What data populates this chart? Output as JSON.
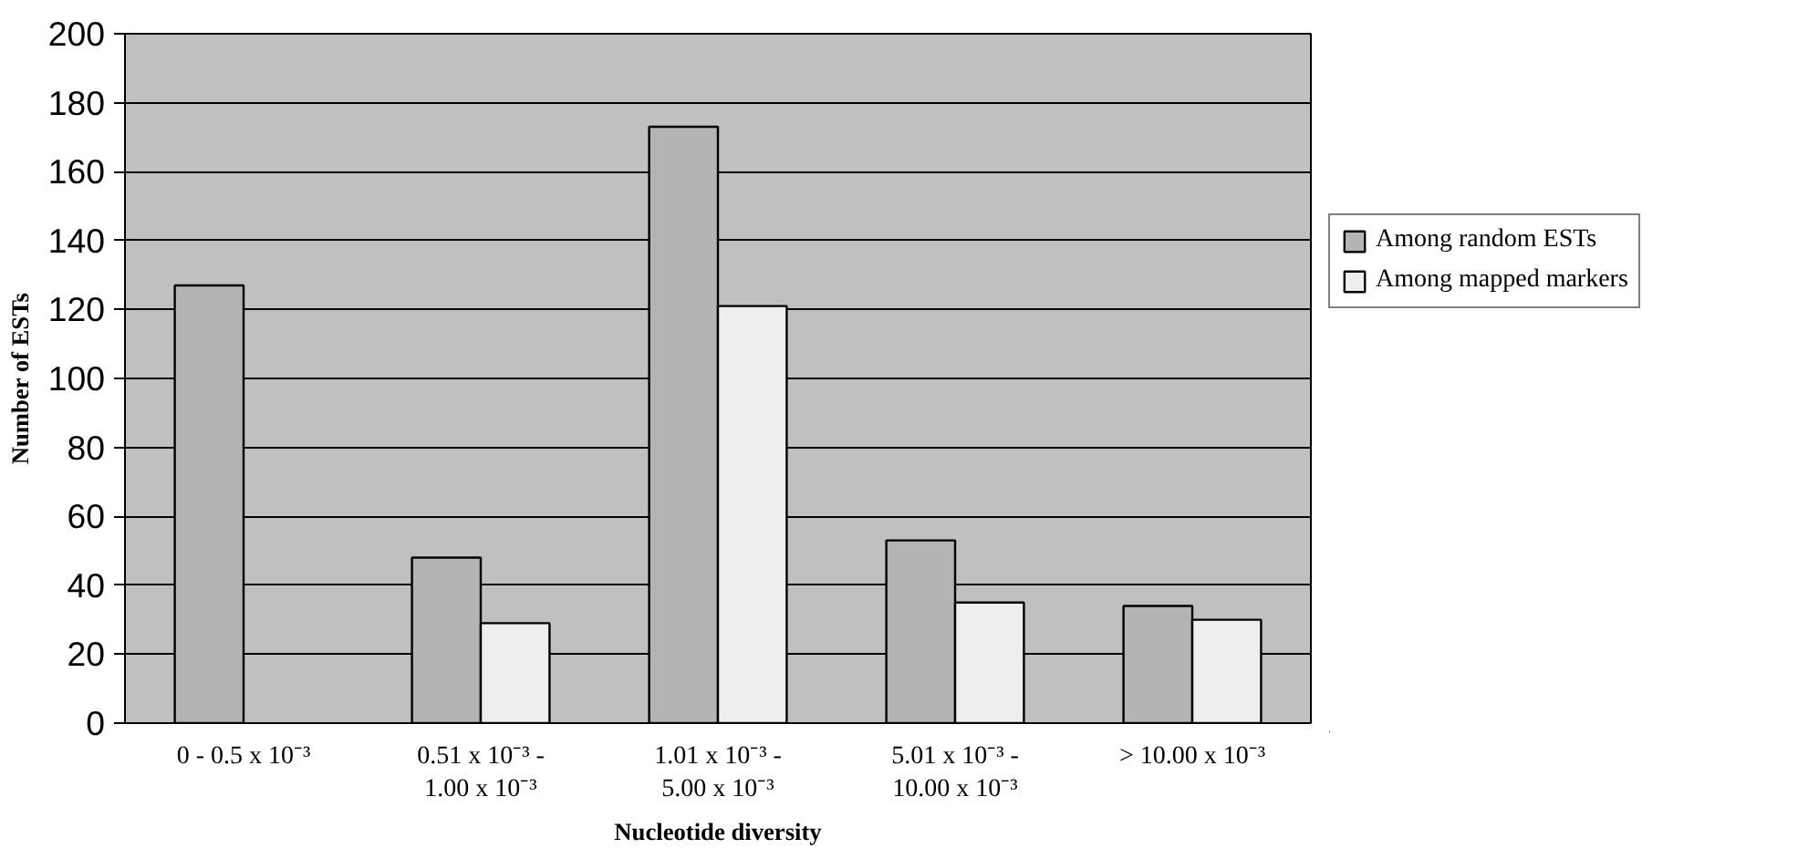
{
  "chart_data": {
    "type": "bar",
    "xlabel": "Nucleotide diversity",
    "ylabel": "Number of ESTs",
    "categories": [
      "0 - 0.5 x 10⁻³",
      "0.51 x 10⁻³ -\n1.00 x 10⁻³",
      "1.01 x 10⁻³ -\n5.00 x 10⁻³",
      "5.01 x 10⁻³ -\n10.00 x 10⁻³",
      "> 10.00 x 10⁻³"
    ],
    "series": [
      {
        "name": "Among random ESTs",
        "color": "#b4b4b4",
        "values": [
          127,
          48,
          173,
          53,
          34
        ]
      },
      {
        "name": "Among mapped markers",
        "color": "#eeeeee",
        "values": [
          null,
          29,
          121,
          35,
          30
        ]
      }
    ],
    "ylim": [
      0,
      200
    ],
    "yticks": [
      0,
      20,
      40,
      60,
      80,
      100,
      120,
      140,
      160,
      180,
      200
    ],
    "grid": "y",
    "legend": "right"
  }
}
